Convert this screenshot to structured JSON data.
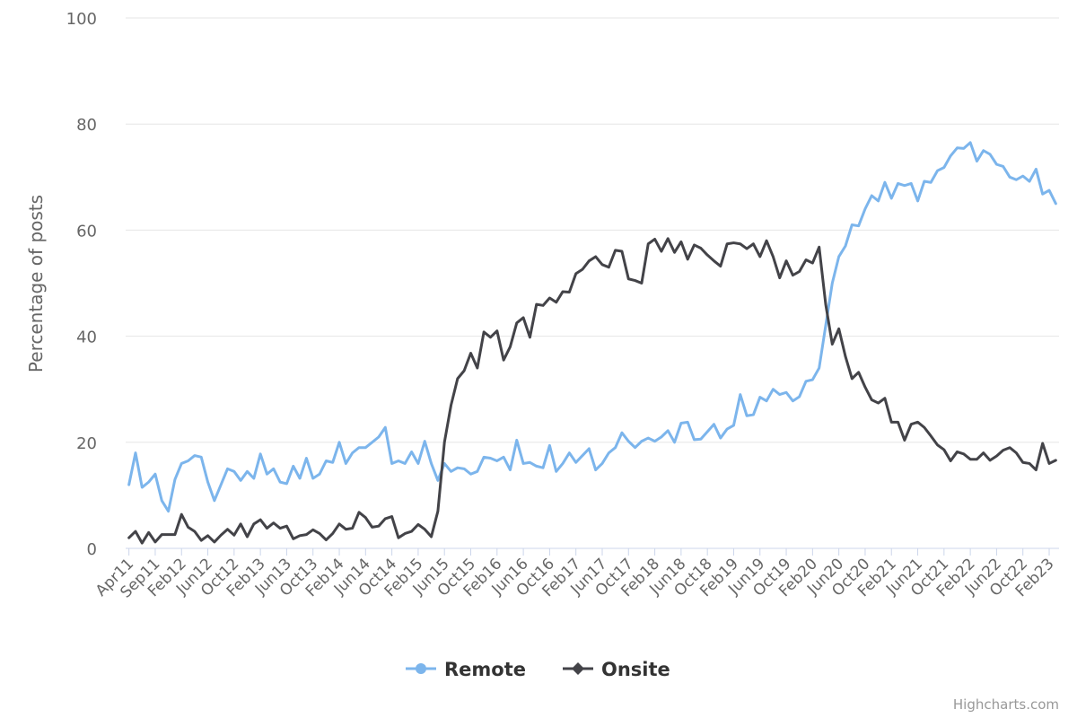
{
  "chart_data": {
    "type": "line",
    "ylabel": "Percentage of posts",
    "xlabel": "",
    "ylim": [
      0,
      100
    ],
    "y_ticks": [
      0,
      20,
      40,
      60,
      80,
      100
    ],
    "grid": true,
    "legend_position": "bottom-center",
    "x_tick_labels": [
      "Apr11",
      "Sep11",
      "Feb12",
      "Jun12",
      "Oct12",
      "Feb13",
      "Jun13",
      "Oct13",
      "Feb14",
      "Jun14",
      "Oct14",
      "Feb15",
      "Jun15",
      "Oct15",
      "Feb16",
      "Jun16",
      "Oct16",
      "Feb17",
      "Jun17",
      "Oct17",
      "Feb18",
      "Jun18",
      "Oct18",
      "Feb19",
      "Jun19",
      "Oct19",
      "Feb20",
      "Jun20",
      "Oct20",
      "Feb21",
      "Jun21",
      "Oct21",
      "Feb22",
      "Jun22",
      "Oct22",
      "Feb23"
    ],
    "x_start": "Apr11",
    "x_end": "Feb23",
    "series": [
      {
        "name": "Remote",
        "color": "#7cb5ec",
        "values": [
          12.0,
          18.0,
          11.5,
          12.5,
          14.0,
          9.0,
          7.0,
          13.0,
          16.0,
          16.5,
          17.5,
          17.2,
          12.5,
          9.0,
          12.0,
          15.0,
          14.5,
          12.8,
          14.5,
          13.2,
          17.8,
          14.0,
          15.0,
          12.5,
          12.2,
          15.5,
          13.2,
          17.0,
          13.2,
          14.0,
          16.5,
          16.2,
          20.0,
          16.0,
          18.0,
          19.0,
          19.0,
          20.0,
          21.0,
          22.8,
          16.0,
          16.5,
          16.0,
          18.2,
          16.0,
          20.2,
          16.0,
          12.8,
          16.0,
          14.5,
          15.2,
          15.0,
          14.0,
          14.5,
          17.2,
          17.0,
          16.5,
          17.2,
          14.8,
          20.4,
          16.0,
          16.2,
          15.5,
          15.2,
          19.4,
          14.5,
          16.0,
          18.0,
          16.2,
          17.5,
          18.8,
          14.8,
          16.0,
          18.0,
          19.0,
          21.8,
          20.2,
          19.0,
          20.2,
          20.8,
          20.2,
          21.0,
          22.2,
          20.0,
          23.6,
          23.8,
          20.5,
          20.6,
          22.0,
          23.4,
          20.8,
          22.5,
          23.2,
          29.0,
          25.0,
          25.2,
          28.5,
          27.8,
          30.0,
          29.0,
          29.4,
          27.8,
          28.6,
          31.5,
          31.8,
          34.0,
          42.0,
          50.0,
          55.0,
          57.0,
          61.0,
          60.8,
          64.0,
          66.5,
          65.5,
          69.0,
          66.0,
          68.8,
          68.4,
          68.8,
          65.5,
          69.2,
          69.0,
          71.2,
          71.8,
          74.0,
          75.5,
          75.4,
          76.5,
          73.0,
          75.0,
          74.3,
          72.4,
          72.0,
          70.0,
          69.5,
          70.2,
          69.2,
          71.5,
          66.8,
          67.5,
          65.0
        ]
      },
      {
        "name": "Onsite",
        "color": "#434348",
        "values": [
          2.0,
          3.2,
          1.0,
          3.0,
          1.2,
          2.6,
          2.6,
          2.6,
          6.4,
          4.0,
          3.2,
          1.5,
          2.4,
          1.2,
          2.5,
          3.6,
          2.5,
          4.6,
          2.2,
          4.6,
          5.4,
          3.8,
          4.8,
          3.8,
          4.2,
          1.8,
          2.4,
          2.6,
          3.5,
          2.8,
          1.6,
          2.8,
          4.6,
          3.6,
          3.8,
          6.8,
          5.8,
          4.0,
          4.2,
          5.6,
          6.0,
          2.0,
          2.8,
          3.2,
          4.5,
          3.6,
          2.2,
          7.0,
          20.0,
          27.0,
          32.0,
          33.5,
          36.8,
          34.0,
          40.8,
          39.8,
          41.0,
          35.5,
          38.0,
          42.5,
          43.5,
          39.8,
          46.0,
          45.8,
          47.2,
          46.4,
          48.4,
          48.3,
          51.8,
          52.6,
          54.2,
          55.0,
          53.5,
          53.0,
          56.2,
          56.0,
          50.8,
          50.5,
          50.0,
          57.4,
          58.3,
          56.0,
          58.4,
          55.8,
          57.8,
          54.5,
          57.2,
          56.6,
          55.3,
          54.2,
          53.2,
          57.4,
          57.6,
          57.4,
          56.5,
          57.4,
          55.0,
          58.0,
          55.0,
          51.0,
          54.2,
          51.5,
          52.2,
          54.4,
          53.8,
          56.8,
          46.0,
          38.5,
          41.4,
          36.2,
          32.0,
          33.2,
          30.4,
          28.0,
          27.4,
          28.3,
          23.8,
          23.8,
          20.4,
          23.4,
          23.8,
          22.8,
          21.2,
          19.5,
          18.6,
          16.5,
          18.2,
          17.8,
          16.8,
          16.8,
          18.0,
          16.6,
          17.4,
          18.5,
          19.0,
          18.0,
          16.2,
          16.0,
          14.8,
          19.8,
          16.0,
          16.6
        ]
      }
    ]
  },
  "credits": "Highcharts.com"
}
